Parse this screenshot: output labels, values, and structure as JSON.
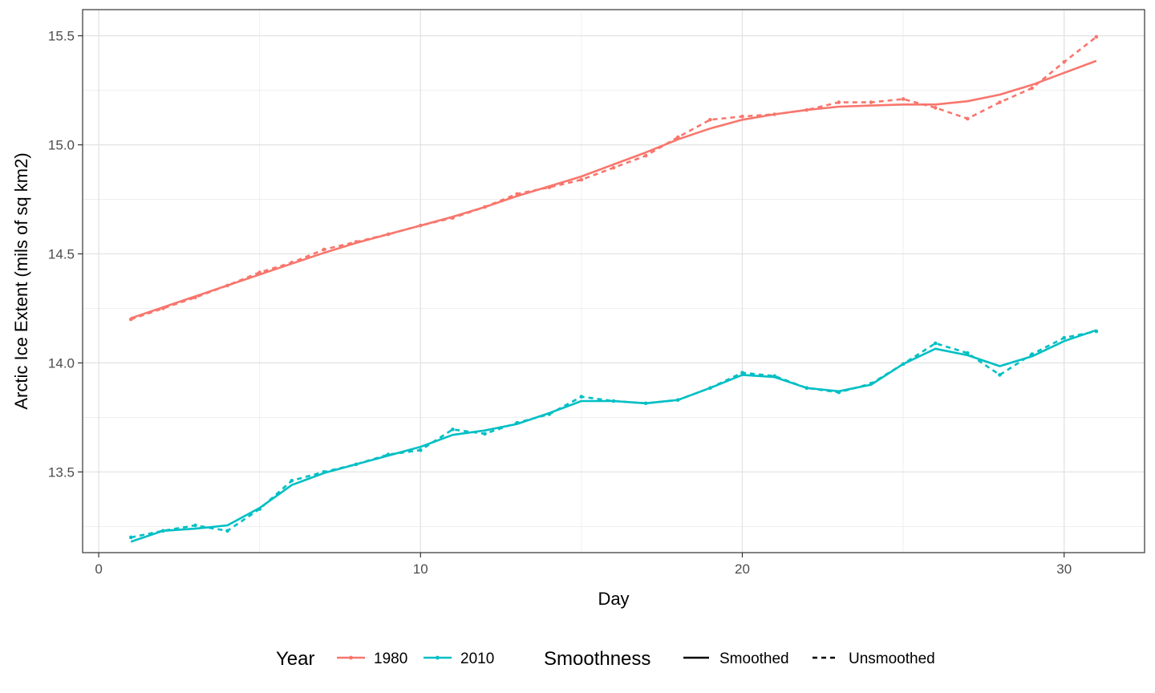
{
  "chart_data": {
    "type": "line",
    "xlabel": "Day",
    "ylabel": "Arctic Ice Extent (mils of sq km2)",
    "xlim": [
      -0.5,
      32.5
    ],
    "ylim": [
      13.13,
      15.62
    ],
    "x_ticks": [
      0,
      10,
      20,
      30
    ],
    "x_tick_labels": [
      "0",
      "10",
      "20",
      "30"
    ],
    "x_minor_ticks": [
      5,
      15,
      25
    ],
    "y_ticks": [
      13.5,
      14.0,
      14.5,
      15.0,
      15.5
    ],
    "y_tick_labels": [
      "13.5",
      "14.0",
      "14.5",
      "15.0",
      "15.5"
    ],
    "y_minor_ticks": [
      13.25,
      13.75,
      14.25,
      14.75,
      15.25
    ],
    "grid": true,
    "legend_position": "bottom",
    "legends": {
      "year": {
        "title": "Year",
        "entries": [
          {
            "label": "1980",
            "color": "#F8766D"
          },
          {
            "label": "2010",
            "color": "#00BFC4"
          }
        ]
      },
      "smoothness": {
        "title": "Smoothness",
        "entries": [
          {
            "label": "Smoothed",
            "linetype": "solid"
          },
          {
            "label": "Unsmoothed",
            "linetype": "dashed"
          }
        ]
      }
    },
    "x": [
      1,
      2,
      3,
      4,
      5,
      6,
      7,
      8,
      9,
      10,
      11,
      12,
      13,
      14,
      15,
      16,
      17,
      18,
      19,
      20,
      21,
      22,
      23,
      24,
      25,
      26,
      27,
      28,
      29,
      30,
      31
    ],
    "series": [
      {
        "year": "1980",
        "smoothness": "Unsmoothed",
        "color": "#F8766D",
        "linetype": "dashed",
        "markers": true,
        "values": [
          14.2,
          14.25,
          14.3,
          14.355,
          14.415,
          14.46,
          14.52,
          14.555,
          14.59,
          14.63,
          14.665,
          14.715,
          14.775,
          14.805,
          14.84,
          14.895,
          14.95,
          15.035,
          15.115,
          15.13,
          15.14,
          15.16,
          15.195,
          15.195,
          15.21,
          15.17,
          15.12,
          15.195,
          15.26,
          15.38,
          15.495
        ]
      },
      {
        "year": "1980",
        "smoothness": "Smoothed",
        "color": "#F8766D",
        "linetype": "solid",
        "markers": false,
        "values": [
          14.205,
          14.255,
          14.305,
          14.355,
          14.405,
          14.455,
          14.505,
          14.55,
          14.59,
          14.63,
          14.67,
          14.715,
          14.765,
          14.81,
          14.855,
          14.91,
          14.965,
          15.025,
          15.075,
          15.115,
          15.14,
          15.16,
          15.175,
          15.18,
          15.185,
          15.185,
          15.2,
          15.23,
          15.275,
          15.33,
          15.385
        ]
      },
      {
        "year": "2010",
        "smoothness": "Unsmoothed",
        "color": "#00BFC4",
        "linetype": "dashed",
        "markers": true,
        "values": [
          13.2,
          13.23,
          13.255,
          13.23,
          13.33,
          13.46,
          13.5,
          13.535,
          13.58,
          13.6,
          13.695,
          13.675,
          13.725,
          13.765,
          13.845,
          13.825,
          13.815,
          13.83,
          13.885,
          13.955,
          13.94,
          13.885,
          13.865,
          13.905,
          13.995,
          14.09,
          14.045,
          13.945,
          14.04,
          14.115,
          14.145
        ]
      },
      {
        "year": "2010",
        "smoothness": "Smoothed",
        "color": "#00BFC4",
        "linetype": "solid",
        "markers": false,
        "values": [
          13.18,
          13.23,
          13.24,
          13.255,
          13.335,
          13.44,
          13.495,
          13.535,
          13.575,
          13.615,
          13.67,
          13.69,
          13.72,
          13.77,
          13.825,
          13.825,
          13.815,
          13.83,
          13.885,
          13.945,
          13.935,
          13.885,
          13.87,
          13.9,
          13.995,
          14.065,
          14.035,
          13.985,
          14.03,
          14.1,
          14.15
        ]
      }
    ]
  }
}
